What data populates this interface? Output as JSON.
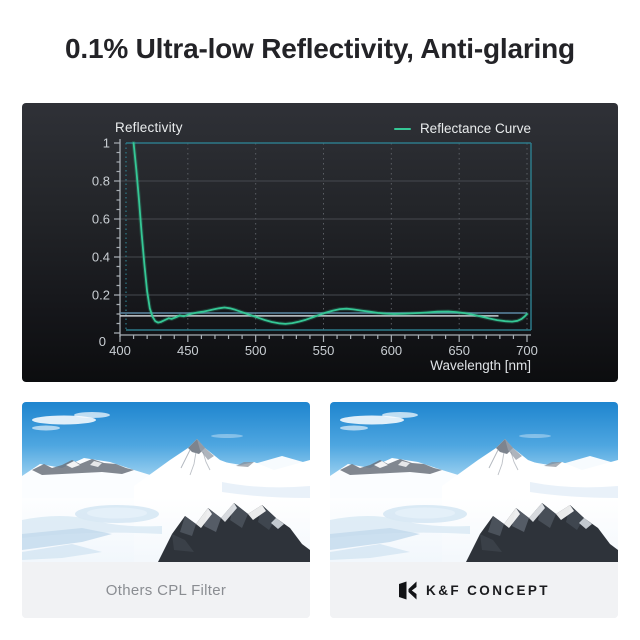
{
  "title": "0.1% Ultra-low Reflectivity, Anti-glaring",
  "chart": {
    "y_axis_label": "Reflectivity",
    "x_axis_label": "Wavelength [nm]",
    "legend_label": "Reflectance Curve",
    "colors": {
      "curve": "#35c795",
      "frame_teal": "#2d7a89",
      "ref_blue": "#5d87a3",
      "ref_white": "#c9cfd3",
      "grid_h": "#46494f",
      "grid_v": "#5a5e64",
      "axis": "#a9afb5",
      "tick_label": "#c9ced3"
    }
  },
  "chart_data": {
    "type": "line",
    "title": "",
    "xlabel": "Wavelength [nm]",
    "ylabel": "Reflectivity",
    "legend_position": "top-right",
    "grid": true,
    "xlim": [
      400,
      700
    ],
    "ylim": [
      0,
      1
    ],
    "x_ticks": [
      400,
      450,
      500,
      550,
      600,
      650,
      700
    ],
    "y_ticks": [
      0,
      0.2,
      0.4,
      0.6,
      0.8,
      1
    ],
    "series": [
      {
        "name": "Reflectance Curve",
        "points": [
          [
            410,
            1.0
          ],
          [
            412,
            0.86
          ],
          [
            414,
            0.7
          ],
          [
            416,
            0.52
          ],
          [
            418,
            0.36
          ],
          [
            420,
            0.22
          ],
          [
            422,
            0.13
          ],
          [
            424,
            0.085
          ],
          [
            426,
            0.062
          ],
          [
            428,
            0.055
          ],
          [
            430,
            0.058
          ],
          [
            433,
            0.068
          ],
          [
            436,
            0.078
          ],
          [
            438,
            0.074
          ],
          [
            441,
            0.082
          ],
          [
            444,
            0.092
          ],
          [
            447,
            0.088
          ],
          [
            450,
            0.096
          ],
          [
            453,
            0.102
          ],
          [
            457,
            0.108
          ],
          [
            461,
            0.112
          ],
          [
            465,
            0.118
          ],
          [
            469,
            0.124
          ],
          [
            473,
            0.13
          ],
          [
            477,
            0.134
          ],
          [
            481,
            0.13
          ],
          [
            485,
            0.122
          ],
          [
            489,
            0.112
          ],
          [
            493,
            0.102
          ],
          [
            497,
            0.092
          ],
          [
            502,
            0.08
          ],
          [
            507,
            0.068
          ],
          [
            512,
            0.058
          ],
          [
            517,
            0.051
          ],
          [
            522,
            0.048
          ],
          [
            527,
            0.052
          ],
          [
            532,
            0.06
          ],
          [
            537,
            0.07
          ],
          [
            542,
            0.082
          ],
          [
            547,
            0.096
          ],
          [
            552,
            0.108
          ],
          [
            557,
            0.118
          ],
          [
            562,
            0.126
          ],
          [
            567,
            0.128
          ],
          [
            572,
            0.124
          ],
          [
            578,
            0.118
          ],
          [
            584,
            0.112
          ],
          [
            590,
            0.106
          ],
          [
            596,
            0.102
          ],
          [
            602,
            0.1
          ],
          [
            610,
            0.102
          ],
          [
            618,
            0.105
          ],
          [
            626,
            0.108
          ],
          [
            634,
            0.112
          ],
          [
            642,
            0.113
          ],
          [
            648,
            0.11
          ],
          [
            654,
            0.105
          ],
          [
            660,
            0.097
          ],
          [
            666,
            0.087
          ],
          [
            672,
            0.077
          ],
          [
            678,
            0.068
          ],
          [
            684,
            0.062
          ],
          [
            689,
            0.06
          ],
          [
            693,
            0.064
          ],
          [
            696,
            0.074
          ],
          [
            698,
            0.086
          ],
          [
            700,
            0.1
          ]
        ]
      }
    ],
    "reference_lines": [
      {
        "name": "low-reflectivity-level",
        "value": 0.105,
        "x_range": [
          400,
          700
        ],
        "color": "#5d87a3"
      },
      {
        "name": "baseline-level",
        "value": 0.09,
        "x_range": [
          400,
          679
        ],
        "color": "#c9cfd3"
      }
    ]
  },
  "comparison": {
    "left_caption": "Others CPL Filter",
    "right_caption": "K&F CONCEPT"
  }
}
